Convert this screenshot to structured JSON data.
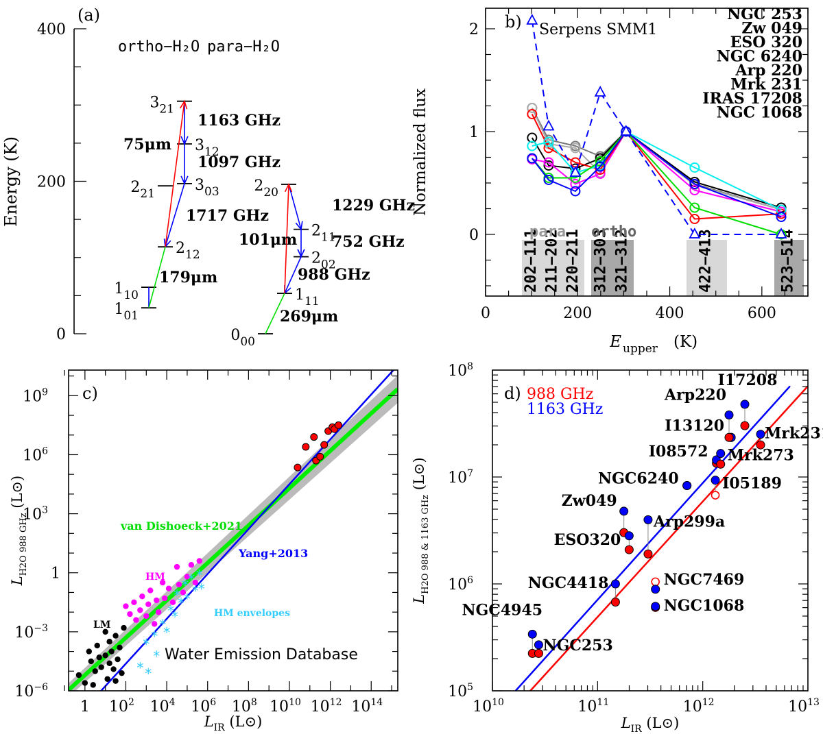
{
  "chart_data": [
    {
      "panel": "a",
      "type": "diagram",
      "panel_label": "(a)",
      "ylabel": "Energy (K)",
      "ylim": [
        0,
        400
      ],
      "yticks": [
        "0",
        "200",
        "400"
      ],
      "ortho_title": "ortho−H₂O",
      "para_title": "para−H₂O",
      "levels": [
        {
          "name": "1_01",
          "base": "1",
          "sub": "01",
          "E": 34,
          "species": "ortho"
        },
        {
          "name": "1_10",
          "base": "1",
          "sub": "10",
          "E": 61,
          "species": "ortho"
        },
        {
          "name": "2_12",
          "base": "2",
          "sub": "12",
          "E": 114,
          "species": "ortho"
        },
        {
          "name": "2_21",
          "base": "2",
          "sub": "21",
          "E": 194,
          "species": "ortho"
        },
        {
          "name": "3_03",
          "base": "3",
          "sub": "03",
          "E": 197,
          "species": "ortho"
        },
        {
          "name": "3_12",
          "base": "3",
          "sub": "12",
          "E": 249,
          "species": "ortho"
        },
        {
          "name": "3_21",
          "base": "3",
          "sub": "21",
          "E": 305,
          "species": "ortho"
        },
        {
          "name": "0_00",
          "base": "0",
          "sub": "00",
          "E": 0,
          "species": "para"
        },
        {
          "name": "1_11",
          "base": "1",
          "sub": "11",
          "E": 53,
          "species": "para"
        },
        {
          "name": "2_02",
          "base": "2",
          "sub": "02",
          "E": 101,
          "species": "para"
        },
        {
          "name": "2_11",
          "base": "2",
          "sub": "11",
          "E": 137,
          "species": "para"
        },
        {
          "name": "2_20",
          "base": "2",
          "sub": "20",
          "E": 196,
          "species": "para"
        }
      ],
      "transitions": [
        {
          "label": "1163 GHz",
          "color": "#0000ff"
        },
        {
          "label": "1097 GHz",
          "color": "#0000ff"
        },
        {
          "label": "1717 GHz",
          "color": "#0000ff"
        },
        {
          "label": "75μm",
          "color": "#ff0000"
        },
        {
          "label": "179μm",
          "color": "#00dd00"
        },
        {
          "label": "1229 GHz",
          "color": "#0000ff"
        },
        {
          "label": "752 GHz",
          "color": "#0000ff"
        },
        {
          "label": "988 GHz",
          "color": "#0000ff"
        },
        {
          "label": "101μm",
          "color": "#ff0000"
        },
        {
          "label": "269μm",
          "color": "#00dd00"
        }
      ]
    },
    {
      "panel": "b",
      "type": "line",
      "panel_label": "b)",
      "xlabel": "E_upper (K)",
      "xlabel_main": "E",
      "xlabel_sub": "upper",
      "xlabel_unit": "(K)",
      "ylabel": "Normalized flux",
      "xlim": [
        0,
        700
      ],
      "ylim": [
        -0.6,
        2.2
      ],
      "xticks": [
        "0",
        "200",
        "400",
        "600"
      ],
      "yticks": [
        "0",
        "1",
        "2"
      ],
      "x": [
        101,
        137,
        195,
        249,
        305,
        454,
        642
      ],
      "para_label": "para",
      "ortho_label": "ortho",
      "bands": [
        {
          "labels": [
            "202−111",
            "211−202",
            "220−211"
          ],
          "shade": "#d8d8d8"
        },
        {
          "labels": [
            "312−303",
            "321−312"
          ],
          "shade": "#a8a8a8"
        },
        {
          "labels": [
            "422−413"
          ],
          "shade": "#d8d8d8"
        },
        {
          "labels": [
            "523−514"
          ],
          "shade": "#a8a8a8"
        }
      ],
      "series": [
        {
          "name": "Serpens SMM1",
          "color": "#0000ff",
          "dashed": true,
          "marker": "triangle",
          "values": [
            2.08,
            1.05,
            0.6,
            1.38,
            1.0,
            0.0,
            0.0
          ]
        },
        {
          "name": "NGC 253",
          "color": "#00dd00",
          "values": [
            0.74,
            0.55,
            0.55,
            0.71,
            1.0,
            0.26,
            0.0
          ]
        },
        {
          "name": "Zw 049",
          "color": "#0000ff",
          "values": [
            0.74,
            0.53,
            0.42,
            0.66,
            1.0,
            0.49,
            0.17
          ]
        },
        {
          "name": "ESO 320",
          "color": "#00eeee",
          "values": [
            0.86,
            0.9,
            0.6,
            0.67,
            1.0,
            0.65,
            0.24
          ]
        },
        {
          "name": "NGC 6240",
          "color": "#ff0000",
          "values": [
            1.17,
            0.84,
            0.7,
            0.63,
            1.0,
            0.15,
            0.2
          ]
        },
        {
          "name": "Arp 220",
          "color": "#ff00ff",
          "values": [
            0.73,
            0.7,
            0.49,
            0.59,
            1.0,
            0.43,
            0.22
          ]
        },
        {
          "name": "Mrk 231",
          "color": "#000000",
          "values": [
            0.94,
            0.67,
            0.64,
            0.74,
            1.0,
            0.51,
            0.26
          ]
        },
        {
          "name": "IRAS 17208",
          "color": "#aaaaaa",
          "values": [
            1.23,
            0.88,
            0.84,
            0.6,
            1.0,
            0.48,
            0.24
          ]
        },
        {
          "name": "NGC 1068",
          "color": "#777777",
          "values": [
            1.23,
            0.92,
            0.86,
            0.76,
            1.0,
            0.49,
            0.24
          ]
        }
      ]
    },
    {
      "panel": "c",
      "type": "scatter",
      "panel_label": "c)",
      "xlabel": "L_IR (L⊙)",
      "ylabel": "L_H2O 988 GHz (L⊙)",
      "x_log_range": [
        -0.8,
        15.3
      ],
      "y_log_range": [
        -6,
        10.3
      ],
      "xticks": [
        {
          "exp": 0,
          "text": "1"
        },
        {
          "exp": 2,
          "text": "10",
          "sup": "2"
        },
        {
          "exp": 4,
          "text": "10",
          "sup": "4"
        },
        {
          "exp": 6,
          "text": "10",
          "sup": "6"
        },
        {
          "exp": 8,
          "text": "10",
          "sup": "8"
        },
        {
          "exp": 10,
          "text": "10",
          "sup": "10"
        },
        {
          "exp": 12,
          "text": "10",
          "sup": "12"
        },
        {
          "exp": 14,
          "text": "10",
          "sup": "14"
        }
      ],
      "yticks": [
        {
          "exp": -6,
          "text": "10",
          "sup": "−6"
        },
        {
          "exp": -3,
          "text": "10",
          "sup": "−3"
        },
        {
          "exp": 0,
          "text": "1"
        },
        {
          "exp": 3,
          "text": "10",
          "sup": "3"
        },
        {
          "exp": 6,
          "text": "10",
          "sup": "6"
        },
        {
          "exp": 9,
          "text": "10",
          "sup": "9"
        }
      ],
      "fits": [
        {
          "name": "van Dishoeck+2021",
          "color": "#00ee00",
          "log_slope": 0.95,
          "log_intercept": -5.2
        },
        {
          "name": "Yang+2013",
          "color": "#0000ff",
          "log_slope": 1.14,
          "log_intercept": -6.9
        }
      ],
      "groups": [
        {
          "name": "LM",
          "color": "#000000",
          "marker": "circle",
          "points": [
            [
              -0.3,
              -5.2
            ],
            [
              0,
              -5.6
            ],
            [
              0.3,
              -4.5
            ],
            [
              0.5,
              -5.0
            ],
            [
              0.6,
              -3.7
            ],
            [
              0.8,
              -4.8
            ],
            [
              1.0,
              -4.2
            ],
            [
              1.1,
              -5.4
            ],
            [
              1.2,
              -3.5
            ],
            [
              1.3,
              -4.0
            ],
            [
              1.4,
              -4.9
            ],
            [
              1.5,
              -3.2
            ],
            [
              1.6,
              -4.4
            ],
            [
              1.7,
              -3.8
            ],
            [
              1.8,
              -5.1
            ],
            [
              1.9,
              -2.8
            ],
            [
              0.2,
              -4.0
            ],
            [
              0.7,
              -4.3
            ],
            [
              1.0,
              -3.0
            ],
            [
              1.5,
              -5.5
            ],
            [
              0.4,
              -5.7
            ],
            [
              1.2,
              -4.6
            ]
          ]
        },
        {
          "name": "HM",
          "color": "#ff00ff",
          "marker": "circle",
          "points": [
            [
              2.0,
              -1.7
            ],
            [
              2.2,
              -2.1
            ],
            [
              2.4,
              -1.5
            ],
            [
              2.5,
              -2.4
            ],
            [
              2.7,
              -1.9
            ],
            [
              2.8,
              -1.2
            ],
            [
              3.0,
              -2.2
            ],
            [
              3.1,
              -1.6
            ],
            [
              3.2,
              -0.9
            ],
            [
              3.4,
              -2.6
            ],
            [
              3.5,
              -1.4
            ],
            [
              3.6,
              -2.0
            ],
            [
              3.8,
              -0.5
            ],
            [
              3.9,
              -1.3
            ],
            [
              4.1,
              -0.8
            ],
            [
              4.3,
              -1.5
            ],
            [
              4.5,
              0.3
            ],
            [
              4.6,
              -0.6
            ],
            [
              4.8,
              -1.0
            ],
            [
              5.0,
              -0.2
            ],
            [
              5.2,
              0.4
            ],
            [
              5.4,
              -0.5
            ],
            [
              5.6,
              0.6
            ]
          ]
        },
        {
          "name": "HM envelopes",
          "color": "#33ccff",
          "marker": "asterisk",
          "points": [
            [
              2.7,
              -4.8
            ],
            [
              3.0,
              -3.6
            ],
            [
              3.1,
              -5.1
            ],
            [
              3.4,
              -3.2
            ],
            [
              3.5,
              -4.2
            ],
            [
              3.8,
              -2.6
            ],
            [
              4.0,
              -3.0
            ],
            [
              4.2,
              -1.9
            ],
            [
              4.4,
              -2.2
            ],
            [
              4.5,
              -1.1
            ],
            [
              4.7,
              -1.5
            ],
            [
              4.9,
              -0.6
            ],
            [
              5.0,
              -1.3
            ],
            [
              5.2,
              -0.3
            ],
            [
              5.4,
              -0.9
            ],
            [
              5.6,
              -0.1
            ],
            [
              5.7,
              -0.8
            ]
          ]
        },
        {
          "name": "galaxies",
          "color": "#ff0000",
          "marker": "circle",
          "points": [
            [
              10.4,
              5.35
            ],
            [
              10.8,
              6.4
            ],
            [
              11.2,
              6.9
            ],
            [
              11.3,
              5.7
            ],
            [
              11.7,
              6.5
            ],
            [
              11.9,
              7.2
            ],
            [
              12.1,
              7.4
            ],
            [
              12.2,
              7.3
            ],
            [
              12.4,
              7.5
            ],
            [
              11.5,
              5.9
            ]
          ]
        }
      ],
      "annotations": [
        "van Dishoeck+2021",
        "Yang+2013",
        "HM",
        "LM",
        "HM envelopes",
        "Water Emission Database"
      ]
    },
    {
      "panel": "d",
      "type": "scatter",
      "panel_label": "d)",
      "xlabel": "L_IR (L⊙)",
      "ylabel": "L_H2O 988 & 1163 GHz (L⊙)",
      "x_log_range": [
        10,
        13
      ],
      "y_log_range": [
        5,
        8
      ],
      "xticks": [
        {
          "exp": 10,
          "text": "10",
          "sup": "10"
        },
        {
          "exp": 11,
          "text": "10",
          "sup": "11"
        },
        {
          "exp": 12,
          "text": "10",
          "sup": "12"
        },
        {
          "exp": 13,
          "text": "10",
          "sup": "13"
        }
      ],
      "yticks": [
        {
          "exp": 5,
          "text": "10",
          "sup": "5"
        },
        {
          "exp": 6,
          "text": "10",
          "sup": "6"
        },
        {
          "exp": 7,
          "text": "10",
          "sup": "7"
        },
        {
          "exp": 8,
          "text": "10",
          "sup": "8"
        }
      ],
      "legend": [
        {
          "label": "988 GHz",
          "color": "#ff0000"
        },
        {
          "label": "1163 GHz",
          "color": "#0000ff"
        }
      ],
      "fits": [
        {
          "name": "1163 GHz fit",
          "color": "#0000ff",
          "x": [
            10.22,
            12.83
          ],
          "y": [
            5.0,
            7.85
          ]
        },
        {
          "name": "988 GHz fit",
          "color": "#ff0000",
          "x": [
            10.36,
            13.0
          ],
          "y": [
            5.0,
            7.85
          ]
        }
      ],
      "galaxies": [
        {
          "name": "NGC4945",
          "lir": 10.38,
          "l988": 5.35,
          "l1163": 5.53
        },
        {
          "name": "NGC253",
          "lir": 10.44,
          "l988": 5.35,
          "l1163": 5.43
        },
        {
          "name": "NGC4418",
          "lir": 11.17,
          "l988": 5.83,
          "l1163": 6.0
        },
        {
          "name": "Zw049",
          "lir": 11.25,
          "l988": 6.48,
          "l1163": 6.68
        },
        {
          "name": "ESO320",
          "lir": 11.3,
          "l988": 6.32,
          "l1163": 6.45
        },
        {
          "name": "Arp299a",
          "lir": 11.48,
          "l988": 6.28,
          "l1163": 6.6
        },
        {
          "name": "NGC6240",
          "lir": 11.85,
          "l988": 6.92,
          "l1163": 6.92
        },
        {
          "name": "NGC7469",
          "lir": 11.55,
          "l988": 6.02,
          "l1163": 5.95,
          "open988": true
        },
        {
          "name": "NGC1068",
          "lir": 11.55,
          "l988": 5.78,
          "l1163": 5.79
        },
        {
          "name": "I05189",
          "lir": 12.12,
          "l988": 6.83,
          "l1163": 6.97,
          "open988": true
        },
        {
          "name": "I08572",
          "lir": 12.13,
          "l988": 7.13,
          "l1163": 7.16
        },
        {
          "name": "Mrk273",
          "lir": 12.17,
          "l988": 7.12,
          "l1163": 7.22
        },
        {
          "name": "I13120",
          "lir": 12.27,
          "l988": 7.37,
          "l1163": 7.37
        },
        {
          "name": "Arp220",
          "lir": 12.25,
          "l988": 7.37,
          "l1163": 7.58
        },
        {
          "name": "I17208",
          "lir": 12.4,
          "l988": 7.48,
          "l1163": 7.68
        },
        {
          "name": "Mrk231",
          "lir": 12.55,
          "l988": 7.3,
          "l1163": 7.4
        }
      ]
    }
  ]
}
